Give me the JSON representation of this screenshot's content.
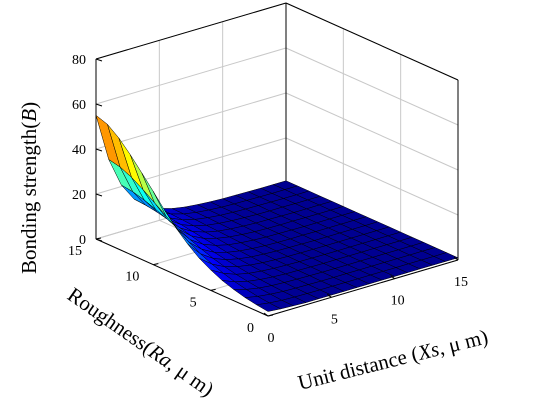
{
  "chart_data": {
    "type": "surface",
    "title": "",
    "x_axis": {
      "label_prefix": "Unit distance (",
      "label_var": "Xs",
      "label_suffix": ", μ m)",
      "range": [
        0,
        15
      ],
      "ticks": [
        0,
        5,
        10,
        15
      ]
    },
    "y_axis": {
      "label_prefix": "Roughness(",
      "label_var": "Ra",
      "label_suffix": ", μ m)",
      "range": [
        0,
        15
      ],
      "ticks": [
        0,
        5,
        10,
        15
      ]
    },
    "z_axis": {
      "label_prefix": "Bonding strength(",
      "label_var": "B",
      "label_suffix": ")",
      "range": [
        0,
        80
      ],
      "ticks": [
        0,
        20,
        40,
        60,
        80
      ]
    },
    "grid": true,
    "colormap": "jet",
    "colormap_range": [
      0,
      60
    ],
    "surface": {
      "xs": [
        0,
        1,
        2,
        3,
        4,
        5,
        6,
        7,
        8,
        9,
        10,
        11,
        12,
        13,
        14,
        15
      ],
      "ra": [
        0,
        1,
        2,
        3,
        4,
        5,
        6,
        7,
        8,
        9,
        10,
        11,
        12,
        13,
        14,
        15
      ],
      "b": [
        [
          2.0,
          1.5,
          1.2,
          1.0,
          1.0,
          1.0,
          1.0,
          1.0,
          1.0,
          1.0,
          1.0,
          1.0,
          1.0,
          1.0,
          1.0,
          1.0
        ],
        [
          2.7,
          1.9,
          1.4,
          1.2,
          1.1,
          1.0,
          1.0,
          1.0,
          1.0,
          1.0,
          1.0,
          1.0,
          1.0,
          1.0,
          1.0,
          1.0
        ],
        [
          3.6,
          2.5,
          1.8,
          1.4,
          1.2,
          1.1,
          1.0,
          1.0,
          1.0,
          1.0,
          1.0,
          1.0,
          1.0,
          1.0,
          1.0,
          1.0
        ],
        [
          5.0,
          3.3,
          2.3,
          1.7,
          1.4,
          1.2,
          1.1,
          1.0,
          1.0,
          1.0,
          1.0,
          1.0,
          1.0,
          1.0,
          1.0,
          1.0
        ],
        [
          6.7,
          4.4,
          3.0,
          2.1,
          1.6,
          1.3,
          1.2,
          1.1,
          1.0,
          1.0,
          1.0,
          1.0,
          1.0,
          1.0,
          1.0,
          1.0
        ],
        [
          9.1,
          5.9,
          3.8,
          2.6,
          1.9,
          1.5,
          1.3,
          1.1,
          1.1,
          1.0,
          1.0,
          1.0,
          1.0,
          1.0,
          1.0,
          1.0
        ],
        [
          12.0,
          7.7,
          4.9,
          3.3,
          2.3,
          1.7,
          1.4,
          1.2,
          1.1,
          1.0,
          1.0,
          1.0,
          1.0,
          1.0,
          1.0,
          1.0
        ],
        [
          16.0,
          10.0,
          6.3,
          4.1,
          2.8,
          2.0,
          1.6,
          1.3,
          1.2,
          1.1,
          1.0,
          1.0,
          1.0,
          1.0,
          1.0,
          1.0
        ],
        [
          20.7,
          12.9,
          8.1,
          5.1,
          3.4,
          2.4,
          1.8,
          1.4,
          1.2,
          1.1,
          1.1,
          1.0,
          1.0,
          1.0,
          1.0,
          1.0
        ],
        [
          26.3,
          16.3,
          10.1,
          6.4,
          4.2,
          2.8,
          2.1,
          1.6,
          1.3,
          1.2,
          1.1,
          1.0,
          1.0,
          1.0,
          1.0,
          1.0
        ],
        [
          32.5,
          20.0,
          12.4,
          7.8,
          5.0,
          3.4,
          2.4,
          1.8,
          1.4,
          1.2,
          1.1,
          1.1,
          1.0,
          1.0,
          1.0,
          1.0
        ],
        [
          38.4,
          23.6,
          14.6,
          9.1,
          5.8,
          3.9,
          2.7,
          2.0,
          1.6,
          1.3,
          1.2,
          1.1,
          1.0,
          1.0,
          1.0,
          1.0
        ],
        [
          44.2,
          27.1,
          16.7,
          10.4,
          6.6,
          4.4,
          3.0,
          2.2,
          1.7,
          1.4,
          1.2,
          1.1,
          1.1,
          1.0,
          1.0,
          1.0
        ],
        [
          49.4,
          30.3,
          18.6,
          11.6,
          7.3,
          4.8,
          3.3,
          2.4,
          1.8,
          1.5,
          1.3,
          1.2,
          1.1,
          1.0,
          1.0,
          1.0
        ],
        [
          53.2,
          32.6,
          20.0,
          12.4,
          7.8,
          5.1,
          3.5,
          2.5,
          1.9,
          1.5,
          1.3,
          1.2,
          1.1,
          1.0,
          1.0,
          1.0
        ],
        [
          55.0,
          33.7,
          20.7,
          12.8,
          8.1,
          5.3,
          3.6,
          2.6,
          2.0,
          1.6,
          1.3,
          1.2,
          1.1,
          1.0,
          1.0,
          1.0
        ]
      ]
    }
  }
}
